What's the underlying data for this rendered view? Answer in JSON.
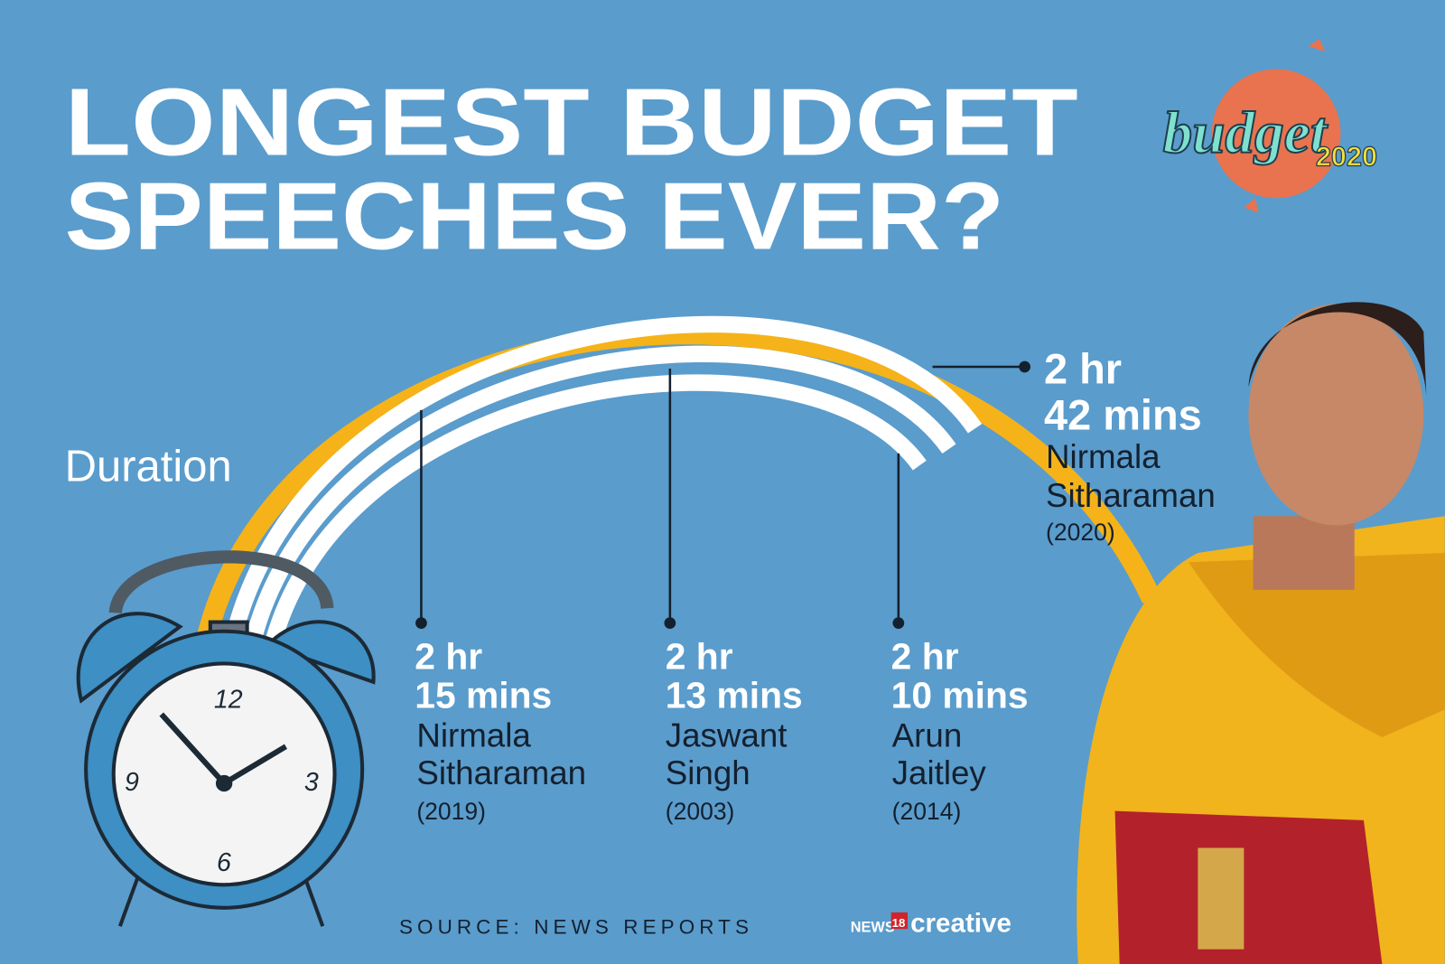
{
  "title": {
    "line1": "LONGEST BUDGET",
    "line2": "SPEECHES EVER?"
  },
  "logo": {
    "word": "budget",
    "year": "2020"
  },
  "axis_label": "Duration",
  "speeches": [
    {
      "hours": "2 hr",
      "minutes": "42 mins",
      "name_line1": "Nirmala",
      "name_line2": "Sitharaman",
      "year": "(2020)"
    },
    {
      "hours": "2 hr",
      "minutes": "15 mins",
      "name_line1": "Nirmala",
      "name_line2": "Sitharaman",
      "year": "(2019)"
    },
    {
      "hours": "2 hr",
      "minutes": "13 mins",
      "name_line1": "Jaswant",
      "name_line2": "Singh",
      "year": "(2003)"
    },
    {
      "hours": "2 hr",
      "minutes": "10 mins",
      "name_line1": "Arun",
      "name_line2": "Jaitley",
      "year": "(2014)"
    }
  ],
  "clock": {
    "numbers": [
      "12",
      "3",
      "6",
      "9"
    ]
  },
  "footer": {
    "source": "SOURCE: NEWS REPORTS",
    "brand_news": "NEWS",
    "brand_18": "18",
    "brand_creative": "creative"
  }
}
